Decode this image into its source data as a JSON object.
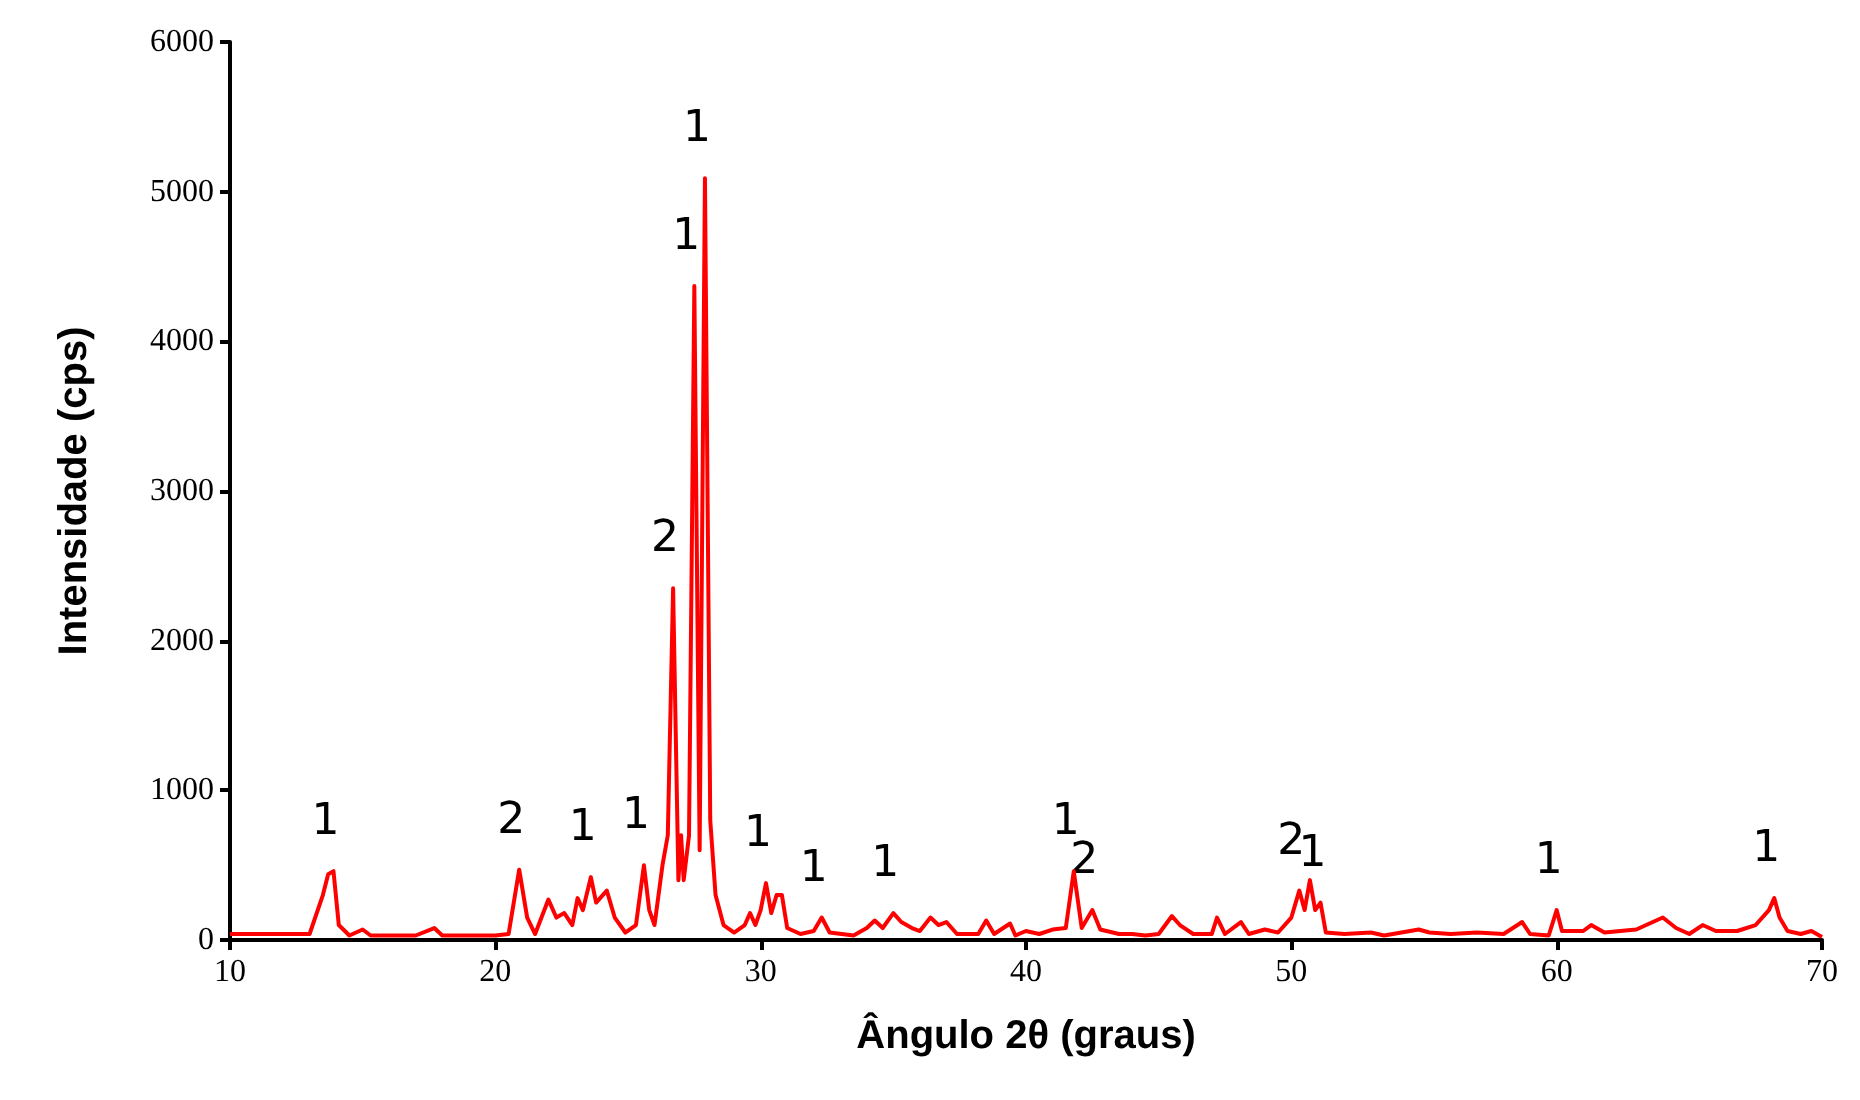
{
  "chart_data": {
    "type": "line",
    "xlabel": "Ângulo 2θ (graus)",
    "ylabel": "Intensidade (cps)",
    "x": [
      10,
      11,
      12,
      13,
      13.5,
      13.7,
      13.9,
      14.1,
      14.5,
      15,
      15.3,
      16,
      17,
      17.7,
      18,
      19,
      20,
      20.5,
      20.9,
      21.2,
      21.5,
      22,
      22.3,
      22.6,
      22.9,
      23.1,
      23.3,
      23.6,
      23.8,
      24.2,
      24.5,
      24.9,
      25.3,
      25.6,
      25.8,
      26,
      26.3,
      26.5,
      26.7,
      26.9,
      27,
      27.1,
      27.3,
      27.5,
      27.7,
      27.9,
      28.1,
      28.3,
      28.6,
      29,
      29.4,
      29.6,
      29.8,
      30,
      30.2,
      30.4,
      30.6,
      30.8,
      31,
      31.5,
      32,
      32.3,
      32.6,
      33.5,
      34,
      34.3,
      34.6,
      35,
      35.3,
      35.7,
      36,
      36.4,
      36.7,
      37,
      37.4,
      38.2,
      38.5,
      38.8,
      39.4,
      39.6,
      40,
      40.5,
      41,
      41.5,
      41.8,
      42.1,
      42.5,
      42.8,
      43.5,
      44,
      44.5,
      45,
      45.5,
      45.8,
      46.3,
      47,
      47.2,
      47.5,
      48.1,
      48.4,
      49,
      49.5,
      50,
      50.3,
      50.5,
      50.7,
      50.9,
      51.1,
      51.3,
      52,
      53,
      53.5,
      54.8,
      55.2,
      56,
      57,
      58,
      58.7,
      59,
      59.7,
      60,
      60.2,
      61,
      61.3,
      61.8,
      63,
      64,
      64.5,
      65,
      65.5,
      66,
      66.8,
      67.5,
      68,
      68.2,
      68.4,
      68.7,
      69.2,
      69.6,
      70
    ],
    "series": [
      {
        "color": "#ff0000",
        "values": [
          40,
          40,
          40,
          40,
          300,
          440,
          460,
          100,
          30,
          70,
          30,
          30,
          30,
          80,
          30,
          30,
          30,
          40,
          470,
          150,
          40,
          270,
          150,
          180,
          100,
          280,
          200,
          420,
          250,
          330,
          150,
          50,
          100,
          500,
          200,
          100,
          500,
          700,
          2350,
          400,
          700,
          400,
          700,
          4370,
          600,
          5090,
          800,
          300,
          100,
          50,
          100,
          180,
          100,
          200,
          380,
          180,
          300,
          300,
          80,
          40,
          60,
          150,
          50,
          30,
          80,
          130,
          80,
          180,
          120,
          80,
          60,
          150,
          100,
          120,
          40,
          40,
          130,
          40,
          110,
          30,
          60,
          40,
          70,
          80,
          460,
          80,
          200,
          70,
          40,
          40,
          30,
          40,
          160,
          100,
          40,
          40,
          150,
          40,
          120,
          40,
          70,
          50,
          150,
          330,
          200,
          400,
          200,
          250,
          50,
          40,
          50,
          30,
          70,
          50,
          40,
          50,
          40,
          120,
          40,
          30,
          200,
          60,
          60,
          100,
          50,
          70,
          150,
          80,
          40,
          100,
          60,
          60,
          100,
          200,
          280,
          150,
          60,
          40,
          60,
          20
        ]
      }
    ],
    "xlim": [
      10,
      70
    ],
    "xticks": [
      10,
      20,
      30,
      40,
      50,
      60,
      70
    ],
    "ylim": [
      0,
      6000
    ],
    "yticks": [
      0,
      1000,
      2000,
      3000,
      4000,
      5000,
      6000
    ],
    "grid": false,
    "marker": "none",
    "line_style": "solid",
    "annotations": [
      {
        "text": "1",
        "x": 13.9,
        "y": 460
      },
      {
        "text": "2",
        "x": 20.9,
        "y": 470
      },
      {
        "text": "1",
        "x": 23.6,
        "y": 420
      },
      {
        "text": "1",
        "x": 25.6,
        "y": 500
      },
      {
        "text": "2",
        "x": 26.7,
        "y": 2350
      },
      {
        "text": "1",
        "x": 27.5,
        "y": 4370
      },
      {
        "text": "1",
        "x": 27.9,
        "y": 5090
      },
      {
        "text": "1",
        "x": 30.2,
        "y": 380
      },
      {
        "text": "1",
        "x": 32.3,
        "y": 150
      },
      {
        "text": "1",
        "x": 35,
        "y": 180
      },
      {
        "text": "1",
        "x": 41.8,
        "y": 460
      },
      {
        "text": "2",
        "x": 42.5,
        "y": 200
      },
      {
        "text": "2",
        "x": 50.3,
        "y": 330
      },
      {
        "text": "1",
        "x": 51.1,
        "y": 250
      },
      {
        "text": "1",
        "x": 60,
        "y": 200
      },
      {
        "text": "1",
        "x": 68.2,
        "y": 280
      }
    ]
  }
}
